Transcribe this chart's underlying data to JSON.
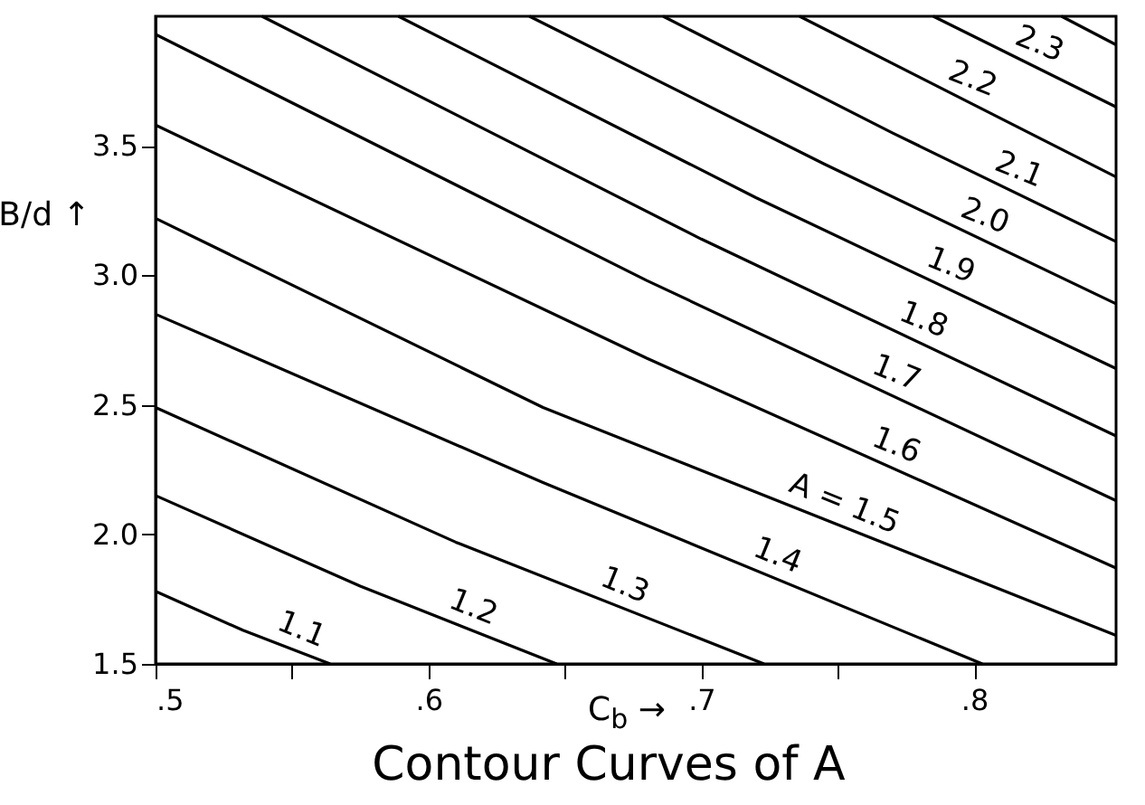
{
  "chart_data": {
    "type": "line",
    "title": "Contour Curves of A",
    "xlabel": "C$_{b}$ →",
    "ylabel": "B/d ↑",
    "xlim": [
      0.5,
      0.852
    ],
    "ylim": [
      1.5,
      4.0
    ],
    "xticks": [
      {
        "value": 0.5,
        "label": ".5"
      },
      {
        "value": 0.55,
        "label": null
      },
      {
        "value": 0.6,
        "label": ".6"
      },
      {
        "value": 0.65,
        "label": null
      },
      {
        "value": 0.7,
        "label": ".7"
      },
      {
        "value": 0.75,
        "label": null
      },
      {
        "value": 0.8,
        "label": ".8"
      }
    ],
    "yticks": [
      {
        "value": 1.5,
        "label": "1.5"
      },
      {
        "value": 2,
        "label": "2.0"
      },
      {
        "value": 2.5,
        "label": "2.5"
      },
      {
        "value": 3,
        "label": "3.0"
      },
      {
        "value": 3.5,
        "label": "3.5"
      }
    ],
    "grid": false,
    "marker": "none",
    "line_style": "solid",
    "series": [
      {
        "name": "1.1",
        "color": "#000000",
        "x": [
          0.5,
          0.532,
          0.564
        ],
        "values": [
          1.78,
          1.63,
          1.5
        ]
      },
      {
        "name": "1.2",
        "color": "#000000",
        "x": [
          0.5,
          0.575,
          0.647
        ],
        "values": [
          2.15,
          1.8,
          1.5
        ]
      },
      {
        "name": "1.3",
        "color": "#000000",
        "x": [
          0.5,
          0.61,
          0.723
        ],
        "values": [
          2.49,
          1.97,
          1.5
        ]
      },
      {
        "name": "1.4",
        "color": "#000000",
        "x": [
          0.5,
          0.642,
          0.803
        ],
        "values": [
          2.85,
          2.2,
          1.5
        ]
      },
      {
        "name": "A = 1.5",
        "color": "#000000",
        "x": [
          0.5,
          0.642,
          0.852
        ],
        "values": [
          3.22,
          2.49,
          1.61
        ]
      },
      {
        "name": "1.6",
        "color": "#000000",
        "x": [
          0.5,
          0.68,
          0.852
        ],
        "values": [
          3.58,
          2.68,
          1.87
        ]
      },
      {
        "name": "1.7",
        "color": "#000000",
        "x": [
          0.5,
          0.68,
          0.852
        ],
        "values": [
          3.93,
          2.98,
          2.13
        ]
      },
      {
        "name": "1.8",
        "color": "#000000",
        "x": [
          0.539,
          0.7,
          0.852
        ],
        "values": [
          4.0,
          3.14,
          2.38
        ]
      },
      {
        "name": "1.9",
        "color": "#000000",
        "x": [
          0.589,
          0.72,
          0.852
        ],
        "values": [
          4.0,
          3.3,
          2.64
        ]
      },
      {
        "name": "2.0",
        "color": "#000000",
        "x": [
          0.637,
          0.745,
          0.852
        ],
        "values": [
          4.0,
          3.43,
          2.89
        ]
      },
      {
        "name": "2.1",
        "color": "#000000",
        "x": [
          0.686,
          0.77,
          0.852
        ],
        "values": [
          4.0,
          3.55,
          3.13
        ]
      },
      {
        "name": "2.2",
        "color": "#000000",
        "x": [
          0.736,
          0.852
        ],
        "values": [
          4.0,
          3.38
        ]
      },
      {
        "name": "2.3",
        "color": "#000000",
        "x": [
          0.785,
          0.852
        ],
        "values": [
          4.0,
          3.65
        ]
      },
      {
        "color": "#000000",
        "x": [
          0.832,
          0.852
        ],
        "values": [
          4.0,
          3.89
        ]
      }
    ]
  }
}
